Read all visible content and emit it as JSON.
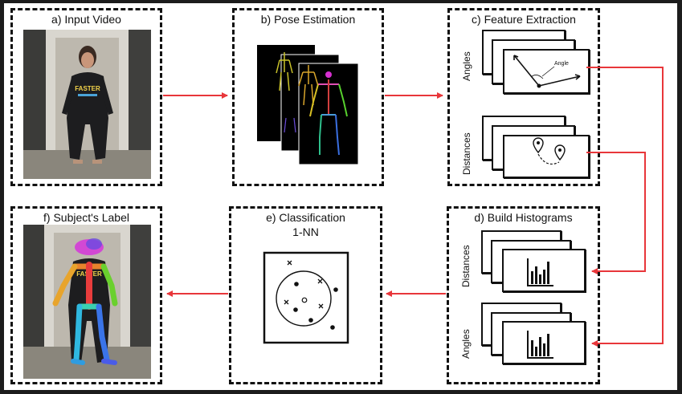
{
  "panels": {
    "a": {
      "title": "a) Input Video"
    },
    "b": {
      "title": "b) Pose Estimation"
    },
    "c": {
      "title": "c) Feature Extraction",
      "angles_label": "Angles",
      "distances_label": "Distances",
      "angle_annotation": "Angle"
    },
    "d": {
      "title": "d) Build Histograms",
      "distances_label": "Distances",
      "angles_label": "Angles"
    },
    "e": {
      "title_line1": "e) Classification",
      "title_line2": "1-NN"
    },
    "f": {
      "title": "f) Subject's Label"
    }
  },
  "shirt_text": "FASTER",
  "colors": {
    "arrow": "#e8363a",
    "border": "#111111",
    "background": "#ffffff",
    "frame": "#1c1c1c"
  },
  "icons": [
    "person-photo",
    "skeleton-frames",
    "angle-card",
    "location-pin-card",
    "histogram-card",
    "scatter-plot",
    "labeled-skeleton-photo"
  ]
}
